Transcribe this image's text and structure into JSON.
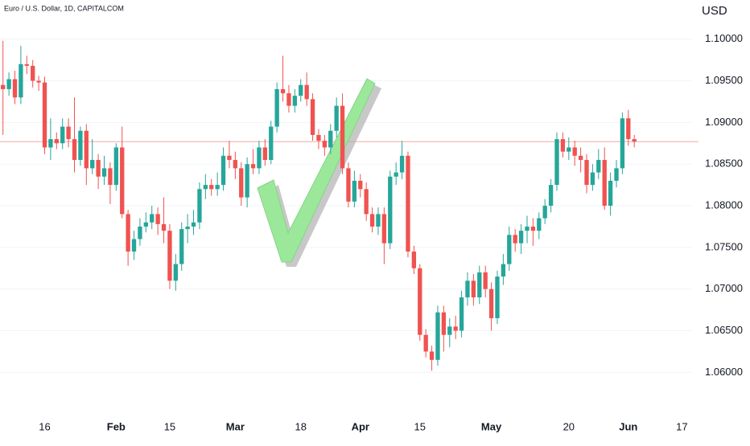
{
  "chart_data": {
    "type": "candlestick",
    "title": "Euro / U.S. Dollar, 1D, CAPITALCOM",
    "y_axis_label": "USD",
    "up_color": "#26a69a",
    "down_color": "#ef5350",
    "price_line": 1.0877,
    "price_line_color": "#f7a9a7",
    "grid": true,
    "ylim": [
      1.0555,
      1.1047
    ],
    "yticks": [
      {
        "value": 1.1,
        "label": "1.10000"
      },
      {
        "value": 1.095,
        "label": "1.09500"
      },
      {
        "value": 1.09,
        "label": "1.09000"
      },
      {
        "value": 1.085,
        "label": "1.08500"
      },
      {
        "value": 1.08,
        "label": "1.08000"
      },
      {
        "value": 1.075,
        "label": "1.07500"
      },
      {
        "value": 1.07,
        "label": "1.07000"
      },
      {
        "value": 1.065,
        "label": "1.06500"
      },
      {
        "value": 1.06,
        "label": "1.06000"
      }
    ],
    "xlim": [
      -0.5,
      115.7
    ],
    "xticks": [
      {
        "value": 7,
        "label": "16"
      },
      {
        "value": 19,
        "label": "Feb",
        "bold": true
      },
      {
        "value": 28,
        "label": "15"
      },
      {
        "value": 39,
        "label": "Mar",
        "bold": true
      },
      {
        "value": 50,
        "label": "18"
      },
      {
        "value": 60,
        "label": "Apr",
        "bold": true
      },
      {
        "value": 70,
        "label": "15"
      },
      {
        "value": 82,
        "label": "May",
        "bold": true
      },
      {
        "value": 95,
        "label": "20"
      },
      {
        "value": 105,
        "label": "Jun",
        "bold": true
      },
      {
        "value": 114,
        "label": "17"
      }
    ],
    "open": [
      1.0945,
      1.094,
      1.0952,
      1.093,
      1.097,
      1.0968,
      1.095,
      1.0948,
      1.087,
      1.088,
      1.0875,
      1.0895,
      1.088,
      1.0855,
      1.089,
      1.0845,
      1.0855,
      1.0835,
      1.0845,
      1.0825,
      1.087,
      1.079,
      1.0745,
      1.076,
      1.0775,
      1.078,
      1.079,
      1.0778,
      1.077,
      1.071,
      1.073,
      1.0772,
      1.0775,
      1.078,
      1.082,
      1.0825,
      1.082,
      1.0825,
      1.086,
      1.0855,
      1.0845,
      1.081,
      1.085,
      1.0845,
      1.087,
      1.0855,
      1.0895,
      1.094,
      1.0935,
      1.092,
      1.0932,
      1.0945,
      1.0928,
      1.0885,
      1.0878,
      1.087,
      1.089,
      1.092,
      1.0845,
      1.0805,
      1.083,
      1.082,
      1.079,
      1.0775,
      1.079,
      1.0755,
      1.0835,
      1.084,
      1.086,
      1.0745,
      1.0725,
      1.0645,
      1.0625,
      1.0615,
      1.0672,
      1.0645,
      1.0655,
      1.065,
      1.069,
      1.071,
      1.069,
      1.072,
      1.07,
      1.0665,
      1.0715,
      1.073,
      1.0765,
      1.0755,
      1.077,
      1.0775,
      1.077,
      1.0785,
      1.08,
      1.0825,
      1.088,
      1.0865,
      1.087,
      1.086,
      1.0855,
      1.0825,
      1.084,
      1.0855,
      1.08,
      1.083,
      1.0845,
      1.0905,
      1.088
    ],
    "close": [
      1.094,
      1.0952,
      1.093,
      1.097,
      1.0968,
      1.095,
      1.0948,
      1.087,
      1.088,
      1.0875,
      1.0895,
      1.088,
      1.0855,
      1.089,
      1.0845,
      1.0855,
      1.0835,
      1.0845,
      1.0825,
      1.087,
      1.079,
      1.0745,
      1.076,
      1.0775,
      1.078,
      1.079,
      1.0778,
      1.077,
      1.071,
      1.073,
      1.0772,
      1.0775,
      1.078,
      1.082,
      1.0825,
      1.082,
      1.0825,
      1.086,
      1.0855,
      1.0845,
      1.081,
      1.085,
      1.0845,
      1.087,
      1.0855,
      1.0895,
      1.094,
      1.0935,
      1.092,
      1.0932,
      1.0945,
      1.0928,
      1.0885,
      1.0878,
      1.087,
      1.089,
      1.092,
      1.0845,
      1.0805,
      1.083,
      1.082,
      1.079,
      1.0775,
      1.079,
      1.0755,
      1.0835,
      1.084,
      1.086,
      1.0745,
      1.0725,
      1.0645,
      1.0625,
      1.0615,
      1.0672,
      1.0645,
      1.0655,
      1.065,
      1.069,
      1.071,
      1.069,
      1.072,
      1.07,
      1.0665,
      1.0715,
      1.073,
      1.0765,
      1.0755,
      1.077,
      1.0775,
      1.077,
      1.0785,
      1.08,
      1.0825,
      1.088,
      1.0865,
      1.087,
      1.086,
      1.0855,
      1.0825,
      1.084,
      1.0855,
      1.08,
      1.083,
      1.0845,
      1.0905,
      1.088,
      1.0877
    ],
    "high": [
      1.0998,
      1.096,
      1.0962,
      1.0992,
      1.098,
      1.0975,
      1.0956,
      1.0955,
      1.0905,
      1.0888,
      1.0905,
      1.0905,
      1.093,
      1.0895,
      1.0898,
      1.088,
      1.0862,
      1.086,
      1.0852,
      1.0875,
      1.0895,
      1.0795,
      1.077,
      1.0785,
      1.0792,
      1.08,
      1.0798,
      1.081,
      1.0778,
      1.0742,
      1.078,
      1.079,
      1.0795,
      1.0828,
      1.0838,
      1.0832,
      1.084,
      1.087,
      1.0878,
      1.0865,
      1.0852,
      1.0858,
      1.0868,
      1.0878,
      1.088,
      1.0902,
      1.0948,
      1.098,
      1.0945,
      1.094,
      1.0952,
      1.096,
      1.0935,
      1.0892,
      1.0885,
      1.0898,
      1.093,
      1.0935,
      1.0852,
      1.0842,
      1.0838,
      1.0828,
      1.0798,
      1.0798,
      1.0798,
      1.0842,
      1.0852,
      1.0878,
      1.0865,
      1.0752,
      1.073,
      1.0652,
      1.0632,
      1.068,
      1.068,
      1.0665,
      1.0668,
      1.0698,
      1.072,
      1.0718,
      1.0728,
      1.0728,
      1.0708,
      1.0722,
      1.0742,
      1.0775,
      1.0772,
      1.0778,
      1.0788,
      1.0785,
      1.0792,
      1.0808,
      1.0832,
      1.0888,
      1.0888,
      1.0882,
      1.0878,
      1.087,
      1.0862,
      1.085,
      1.0868,
      1.087,
      1.084,
      1.0855,
      1.0912,
      1.0915,
      1.0885
    ],
    "low": [
      1.0885,
      1.0932,
      1.0922,
      1.0922,
      1.0958,
      1.0942,
      1.0938,
      1.0862,
      1.0855,
      1.0868,
      1.0868,
      1.087,
      1.084,
      1.0848,
      1.0825,
      1.0838,
      1.082,
      1.0825,
      1.0802,
      1.0818,
      1.0785,
      1.0728,
      1.0735,
      1.0752,
      1.0768,
      1.0772,
      1.0765,
      1.0755,
      1.07,
      1.0698,
      1.0722,
      1.0755,
      1.0765,
      1.0772,
      1.0808,
      1.0812,
      1.0812,
      1.0818,
      1.0845,
      1.0832,
      1.08,
      1.0798,
      1.0838,
      1.0838,
      1.0848,
      1.085,
      1.0888,
      1.0925,
      1.0912,
      1.0912,
      1.0925,
      1.092,
      1.0878,
      1.0868,
      1.086,
      1.0862,
      1.0882,
      1.0838,
      1.0798,
      1.0798,
      1.081,
      1.0782,
      1.0768,
      1.0765,
      1.073,
      1.0748,
      1.0825,
      1.0832,
      1.0738,
      1.0718,
      1.0638,
      1.0618,
      1.0602,
      1.0608,
      1.0625,
      1.063,
      1.064,
      1.0642,
      1.068,
      1.068,
      1.0682,
      1.069,
      1.065,
      1.0658,
      1.0705,
      1.0722,
      1.0745,
      1.0742,
      1.0755,
      1.0752,
      1.076,
      1.0778,
      1.0792,
      1.0818,
      1.0858,
      1.0855,
      1.0848,
      1.084,
      1.0815,
      1.0818,
      1.0832,
      1.0795,
      1.0788,
      1.0822,
      1.0838,
      1.0872,
      1.087
    ]
  }
}
